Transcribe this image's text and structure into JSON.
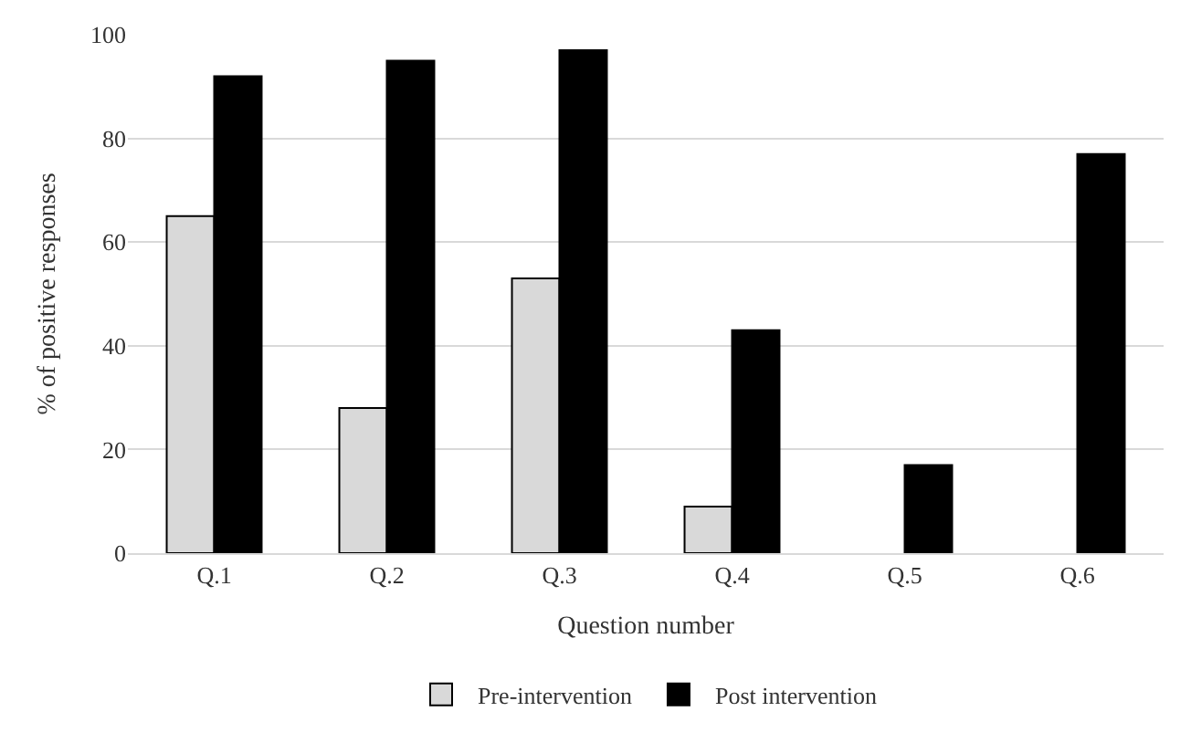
{
  "chart_data": {
    "type": "bar",
    "xlabel": "Question number",
    "ylabel": "% of positive responses",
    "categories": [
      "Q.1",
      "Q.2",
      "Q.3",
      "Q.4",
      "Q.5",
      "Q.6"
    ],
    "series": [
      {
        "name": "Pre-intervention",
        "color": "#d9d9d9",
        "values": [
          65,
          28,
          53,
          9,
          null,
          null
        ]
      },
      {
        "name": "Post intervention",
        "color": "#000000",
        "values": [
          92,
          95,
          97,
          43,
          17,
          77
        ]
      }
    ],
    "ylim": [
      0,
      100
    ],
    "yticks": [
      0,
      20,
      40,
      60,
      80,
      100
    ],
    "grid": "y",
    "legend": "bottom"
  }
}
